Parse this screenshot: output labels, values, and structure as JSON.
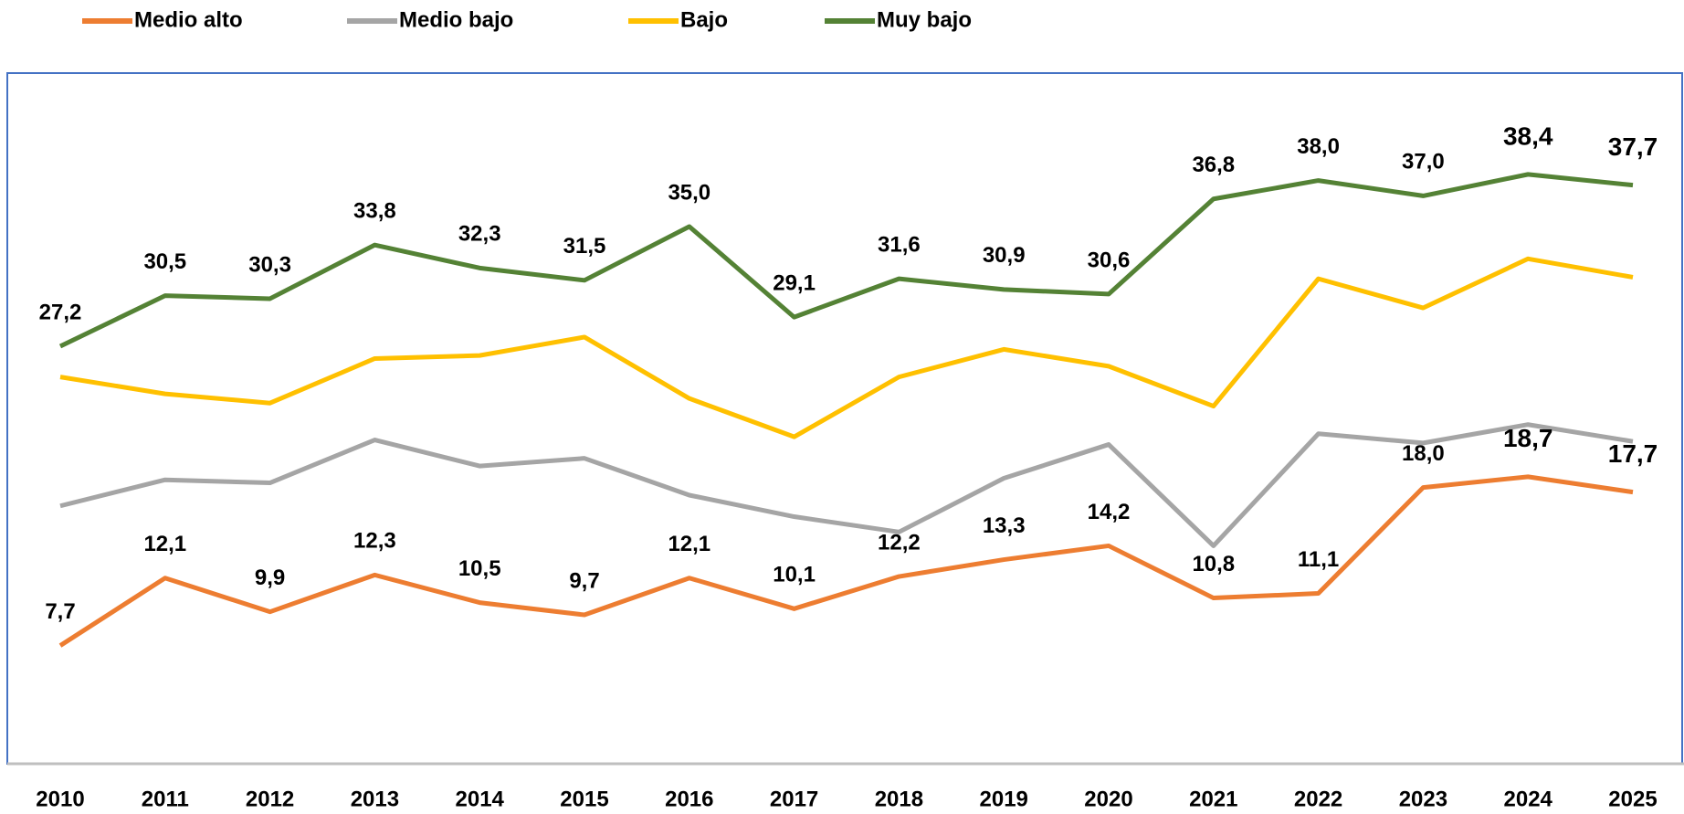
{
  "chart_data": {
    "type": "line",
    "categories": [
      "2010",
      "2011",
      "2012",
      "2013",
      "2014",
      "2015",
      "2016",
      "2017",
      "2018",
      "2019",
      "2020",
      "2021",
      "2022",
      "2023",
      "2024",
      "2025"
    ],
    "series": [
      {
        "name": "Medio alto",
        "color": "#ed7d31",
        "values": [
          7.7,
          12.1,
          9.9,
          12.3,
          10.5,
          9.7,
          12.1,
          10.1,
          12.2,
          13.3,
          14.2,
          10.8,
          11.1,
          18.0,
          18.7,
          17.7
        ],
        "value_labels": [
          "7,7",
          "12,1",
          "9,9",
          "12,3",
          "10,5",
          "9,7",
          "12,1",
          "10,1",
          "12,2",
          "13,3",
          "14,2",
          "10,8",
          "11,1",
          "18,0",
          "18,7",
          "17,7"
        ]
      },
      {
        "name": "Medio bajo",
        "color": "#a5a5a5",
        "values": [
          16.8,
          18.5,
          18.3,
          21.1,
          19.4,
          19.9,
          17.5,
          16.1,
          15.1,
          18.6,
          20.8,
          14.2,
          21.5,
          20.9,
          22.1,
          21.0
        ]
      },
      {
        "name": "Bajo",
        "color": "#ffc000",
        "values": [
          25.2,
          24.1,
          23.5,
          26.4,
          26.6,
          27.8,
          23.8,
          21.3,
          25.2,
          27.0,
          25.9,
          23.3,
          31.6,
          29.7,
          32.9,
          31.7
        ]
      },
      {
        "name": "Muy bajo",
        "color": "#548235",
        "values": [
          27.2,
          30.5,
          30.3,
          33.8,
          32.3,
          31.5,
          35.0,
          29.1,
          31.6,
          30.9,
          30.6,
          36.8,
          38.0,
          37.0,
          38.4,
          37.7
        ],
        "value_labels": [
          "27,2",
          "30,5",
          "30,3",
          "33,8",
          "32,3",
          "31,5",
          "35,0",
          "29,1",
          "31,6",
          "30,9",
          "30,6",
          "36,8",
          "38,0",
          "37,0",
          "38,4",
          "37,7"
        ]
      }
    ],
    "ylim": [
      0,
      45
    ],
    "legend": "top"
  }
}
